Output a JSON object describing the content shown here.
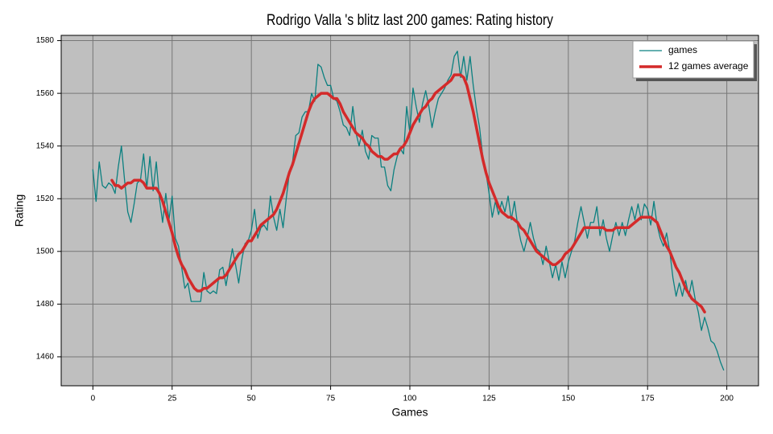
{
  "chart_data": {
    "type": "line",
    "title": "Rodrigo Valla 's blitz last 200 games: Rating history",
    "x_label": "Games",
    "y_label": "Rating",
    "x": [
      0,
      1,
      2,
      3,
      4,
      5,
      6,
      7,
      8,
      9,
      10,
      11,
      12,
      13,
      14,
      15,
      16,
      17,
      18,
      19,
      20,
      21,
      22,
      23,
      24,
      25,
      26,
      27,
      28,
      29,
      30,
      31,
      32,
      33,
      34,
      35,
      36,
      37,
      38,
      39,
      40,
      41,
      42,
      43,
      44,
      45,
      46,
      47,
      48,
      49,
      50,
      51,
      52,
      53,
      54,
      55,
      56,
      57,
      58,
      59,
      60,
      61,
      62,
      63,
      64,
      65,
      66,
      67,
      68,
      69,
      70,
      71,
      72,
      73,
      74,
      75,
      76,
      77,
      78,
      79,
      80,
      81,
      82,
      83,
      84,
      85,
      86,
      87,
      88,
      89,
      90,
      91,
      92,
      93,
      94,
      95,
      96,
      97,
      98,
      99,
      100,
      101,
      102,
      103,
      104,
      105,
      106,
      107,
      108,
      109,
      110,
      111,
      112,
      113,
      114,
      115,
      116,
      117,
      118,
      119,
      120,
      121,
      122,
      123,
      124,
      125,
      126,
      127,
      128,
      129,
      130,
      131,
      132,
      133,
      134,
      135,
      136,
      137,
      138,
      139,
      140,
      141,
      142,
      143,
      144,
      145,
      146,
      147,
      148,
      149,
      150,
      151,
      152,
      153,
      154,
      155,
      156,
      157,
      158,
      159,
      160,
      161,
      162,
      163,
      164,
      165,
      166,
      167,
      168,
      169,
      170,
      171,
      172,
      173,
      174,
      175,
      176,
      177,
      178,
      179,
      180,
      181,
      182,
      183,
      184,
      185,
      186,
      187,
      188,
      189,
      190,
      191,
      192,
      193,
      194,
      195,
      196,
      197,
      198,
      199
    ],
    "series": [
      {
        "name": "games",
        "color": "#0b8080",
        "width": 1.3,
        "values": [
          1531,
          1519,
          1534,
          1525,
          1524,
          1526,
          1525,
          1522,
          1532,
          1540,
          1527,
          1515,
          1511,
          1518,
          1526,
          1527,
          1537,
          1524,
          1536,
          1523,
          1534,
          1520,
          1511,
          1522,
          1512,
          1521,
          1505,
          1502,
          1494,
          1486,
          1488,
          1481,
          1481,
          1481,
          1481,
          1492,
          1485,
          1484,
          1485,
          1484,
          1493,
          1494,
          1487,
          1494,
          1501,
          1495,
          1488,
          1497,
          1503,
          1504,
          1508,
          1516,
          1505,
          1509,
          1510,
          1508,
          1521,
          1513,
          1508,
          1516,
          1509,
          1520,
          1530,
          1534,
          1544,
          1545,
          1551,
          1553,
          1553,
          1560,
          1557,
          1571,
          1570,
          1566,
          1563,
          1563,
          1558,
          1557,
          1553,
          1548,
          1547,
          1544,
          1555,
          1545,
          1540,
          1546,
          1538,
          1535,
          1544,
          1543,
          1543,
          1532,
          1532,
          1525,
          1523,
          1531,
          1536,
          1539,
          1537,
          1555,
          1545,
          1562,
          1555,
          1549,
          1556,
          1561,
          1555,
          1547,
          1553,
          1558,
          1560,
          1562,
          1565,
          1567,
          1574,
          1576,
          1566,
          1574,
          1565,
          1574,
          1563,
          1554,
          1547,
          1536,
          1530,
          1522,
          1513,
          1519,
          1514,
          1519,
          1515,
          1521,
          1512,
          1519,
          1510,
          1504,
          1500,
          1505,
          1511,
          1505,
          1501,
          1500,
          1495,
          1502,
          1496,
          1490,
          1495,
          1489,
          1496,
          1490,
          1496,
          1500,
          1504,
          1511,
          1517,
          1511,
          1505,
          1511,
          1511,
          1517,
          1506,
          1512,
          1505,
          1500,
          1506,
          1511,
          1506,
          1511,
          1506,
          1512,
          1517,
          1512,
          1518,
          1512,
          1518,
          1516,
          1510,
          1519,
          1510,
          1505,
          1502,
          1507,
          1500,
          1490,
          1483,
          1488,
          1483,
          1489,
          1483,
          1489,
          1482,
          1477,
          1470,
          1475,
          1471,
          1466,
          1465,
          1462,
          1458,
          1455
        ]
      },
      {
        "name": "12 games average",
        "color": "#d42a2a",
        "width": 3.5,
        "values": [
          null,
          null,
          null,
          null,
          null,
          null,
          1527,
          1525,
          1525,
          1524,
          1525,
          1526,
          1526,
          1527,
          1527,
          1527,
          1526,
          1524,
          1524,
          1524,
          1524,
          1522,
          1519,
          1515,
          1511,
          1507,
          1502,
          1498,
          1495,
          1493,
          1490,
          1488,
          1486,
          1485,
          1485,
          1486,
          1486,
          1487,
          1488,
          1489,
          1490,
          1490,
          1491,
          1493,
          1495,
          1497,
          1499,
          1500,
          1502,
          1504,
          1504,
          1506,
          1508,
          1510,
          1511,
          1512,
          1513,
          1514,
          1516,
          1519,
          1522,
          1526,
          1530,
          1533,
          1537,
          1541,
          1545,
          1549,
          1553,
          1556,
          1558,
          1559,
          1560,
          1560,
          1560,
          1559,
          1558,
          1558,
          1556,
          1553,
          1551,
          1549,
          1547,
          1545,
          1544,
          1543,
          1541,
          1540,
          1538,
          1537,
          1536,
          1536,
          1535,
          1535,
          1536,
          1537,
          1537,
          1539,
          1540,
          1542,
          1545,
          1548,
          1550,
          1552,
          1554,
          1555,
          1557,
          1558,
          1560,
          1561,
          1562,
          1563,
          1564,
          1565,
          1567,
          1567,
          1567,
          1566,
          1563,
          1558,
          1553,
          1547,
          1541,
          1535,
          1530,
          1526,
          1523,
          1520,
          1517,
          1515,
          1514,
          1513,
          1513,
          1512,
          1511,
          1509,
          1508,
          1506,
          1504,
          1502,
          1500,
          1499,
          1498,
          1497,
          1496,
          1495,
          1495,
          1496,
          1497,
          1499,
          1500,
          1501,
          1503,
          1505,
          1507,
          1509,
          1509,
          1509,
          1509,
          1509,
          1509,
          1509,
          1508,
          1508,
          1508,
          1509,
          1509,
          1509,
          1509,
          1509,
          1510,
          1511,
          1512,
          1513,
          1513,
          1513,
          1513,
          1512,
          1511,
          1508,
          1505,
          1502,
          1500,
          1497,
          1494,
          1492,
          1489,
          1486,
          1484,
          1482,
          1481,
          1480,
          1479,
          1477,
          null,
          null,
          null,
          null,
          null,
          null
        ]
      }
    ],
    "xlim": [
      -10,
      210
    ],
    "ylim": [
      1449,
      1582
    ],
    "xticks": [
      0,
      25,
      50,
      75,
      100,
      125,
      150,
      175,
      200
    ],
    "yticks": [
      1460,
      1480,
      1500,
      1520,
      1540,
      1560,
      1580
    ],
    "grid": true,
    "legend": "upper right",
    "background": "#bfbfbf"
  }
}
